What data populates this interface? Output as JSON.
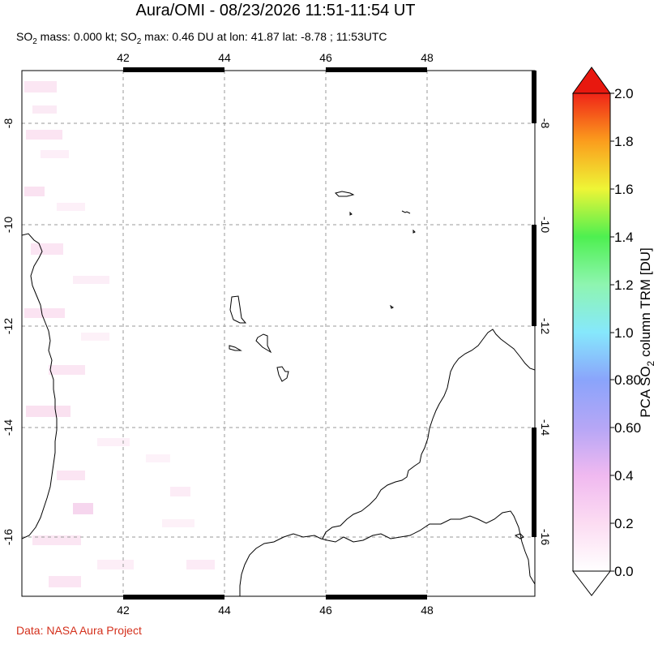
{
  "title": "Aura/OMI - 08/23/2026 11:51-11:54 UT",
  "subtitle": {
    "prefix": "SO",
    "sub": "2",
    "mass_text": " mass: 0.000 kt; SO",
    "sub2": "2",
    "max_text": " max: 0.46 DU at lon: 41.87 lat: -8.78 ; 11:53UTC"
  },
  "credit": "Data: NASA Aura Project",
  "map": {
    "lon_ticks": [
      "42",
      "44",
      "46",
      "48"
    ],
    "lat_ticks": [
      "-8",
      "-10",
      "-12",
      "-14",
      "-16"
    ],
    "lon_range": [
      40,
      50
    ],
    "lat_range": [
      -17.2,
      -7.1
    ]
  },
  "colorbar": {
    "title_pre": "PCA SO",
    "title_sub": "2",
    "title_post": " column TRM [DU]",
    "labels": [
      "2.0",
      "1.8",
      "1.6",
      "1.4",
      "1.2",
      "1.0",
      "0.80",
      "0.60",
      "0.4",
      "0.2",
      "0.0"
    ],
    "range": [
      0.0,
      2.0
    ]
  }
}
